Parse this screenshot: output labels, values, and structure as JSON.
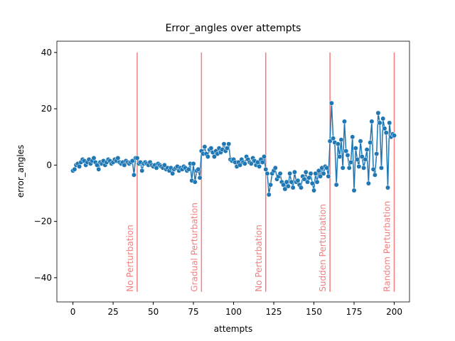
{
  "chart_data": {
    "type": "line",
    "title": "Error_angles over attempts",
    "xlabel": "attempts",
    "ylabel": "error_angles",
    "x": [
      0,
      1,
      2,
      3,
      4,
      5,
      6,
      7,
      8,
      9,
      10,
      11,
      12,
      13,
      14,
      15,
      16,
      17,
      18,
      19,
      20,
      21,
      22,
      23,
      24,
      25,
      26,
      27,
      28,
      29,
      30,
      31,
      32,
      33,
      34,
      35,
      36,
      37,
      38,
      39,
      40,
      41,
      42,
      43,
      44,
      45,
      46,
      47,
      48,
      49,
      50,
      51,
      52,
      53,
      54,
      55,
      56,
      57,
      58,
      59,
      60,
      61,
      62,
      63,
      64,
      65,
      66,
      67,
      68,
      69,
      70,
      71,
      72,
      73,
      74,
      75,
      76,
      77,
      78,
      79,
      80,
      81,
      82,
      83,
      84,
      85,
      86,
      87,
      88,
      89,
      90,
      91,
      92,
      93,
      94,
      95,
      96,
      97,
      98,
      99,
      100,
      101,
      102,
      103,
      104,
      105,
      106,
      107,
      108,
      109,
      110,
      111,
      112,
      113,
      114,
      115,
      116,
      117,
      118,
      119,
      120,
      121,
      122,
      123,
      124,
      125,
      126,
      127,
      128,
      129,
      130,
      131,
      132,
      133,
      134,
      135,
      136,
      137,
      138,
      139,
      140,
      141,
      142,
      143,
      144,
      145,
      146,
      147,
      148,
      149,
      150,
      151,
      152,
      153,
      154,
      155,
      156,
      157,
      158,
      159,
      160,
      161,
      162,
      163,
      164,
      165,
      166,
      167,
      168,
      169,
      170,
      171,
      172,
      173,
      174,
      175,
      176,
      177,
      178,
      179,
      180,
      181,
      182,
      183,
      184,
      185,
      186,
      187,
      188,
      189,
      190,
      191,
      192,
      193,
      194,
      195,
      196,
      197,
      198,
      199,
      200
    ],
    "series": [
      {
        "name": "error_angles",
        "color": "#1f77b4",
        "values": [
          -2,
          -1.5,
          0,
          0.5,
          -0.5,
          1,
          2,
          1.5,
          0,
          1,
          2,
          0.5,
          1.5,
          2.5,
          1,
          0,
          -1.5,
          1,
          0.5,
          1.5,
          0,
          1,
          2,
          1.5,
          0.5,
          1,
          2,
          1.5,
          2.5,
          1,
          0.5,
          1,
          0,
          1.5,
          1,
          0.5,
          1,
          1.5,
          -3.5,
          2.5,
          2.5,
          0.5,
          1,
          -2,
          0.5,
          1,
          0.5,
          0,
          1,
          0,
          -0.5,
          0,
          -1,
          0.5,
          0,
          -0.5,
          -1,
          0,
          -1.5,
          -1,
          -2,
          -1,
          -3,
          -1.5,
          -1,
          -0.5,
          -2,
          -1,
          -1.5,
          -0.5,
          -1,
          -2,
          -1.5,
          0.5,
          -5.5,
          0.5,
          -6,
          -2,
          -1.5,
          -4.5,
          5,
          4,
          6.5,
          4,
          3,
          5.5,
          6,
          4.5,
          3,
          5,
          4,
          6,
          4.5,
          5.5,
          7.5,
          5,
          6,
          7.5,
          2,
          1.5,
          2,
          1,
          -0.5,
          1,
          0,
          2,
          1,
          0.5,
          3,
          2,
          1,
          0.5,
          2.5,
          1.5,
          0,
          1,
          -0.5,
          2,
          1,
          3,
          -1.5,
          -3,
          -10.5,
          -7,
          -3,
          -2,
          -1,
          -5,
          -4,
          -3,
          -6,
          -7,
          -8.5,
          -6,
          -7.5,
          -3,
          -6,
          -8,
          -2.5,
          -6,
          -5.5,
          -7,
          -8,
          -4,
          -5,
          -2.5,
          -6,
          -4.5,
          -3,
          -6.5,
          -9,
          -3,
          -6,
          -2,
          -4,
          -1,
          -3,
          -0.5,
          -1,
          -4,
          8.5,
          22,
          9.5,
          8,
          -7,
          7.5,
          3,
          9,
          -1,
          15.5,
          5,
          3.5,
          -1,
          1,
          10,
          -9,
          6,
          2,
          -0.5,
          8.5,
          3,
          -1,
          2,
          5.5,
          -6.5,
          8,
          15.5,
          -1.5,
          -3.5,
          4,
          18.5,
          15,
          -1,
          16.5,
          13,
          11.5,
          -8,
          15,
          10,
          11,
          10.5
        ]
      }
    ],
    "xlim": [
      -10,
      209.5
    ],
    "ylim": [
      -48.6,
      44
    ],
    "xticks": [
      0,
      25,
      50,
      75,
      100,
      125,
      150,
      175,
      200
    ],
    "yticks": [
      {
        "value": -40,
        "label": "−40"
      },
      {
        "value": -20,
        "label": "−20"
      },
      0,
      20,
      40
    ],
    "vlines": {
      "color": "#f08080",
      "ymin": -45,
      "ymax": 40,
      "lines": [
        {
          "x": 40,
          "label": "No Perturbation"
        },
        {
          "x": 80,
          "label": "Gradual Perturbation"
        },
        {
          "x": 120,
          "label": "No Perturbation"
        },
        {
          "x": 160,
          "label": "Sudden Perturbation"
        },
        {
          "x": 200,
          "label": "Random Perturbation"
        }
      ]
    }
  }
}
